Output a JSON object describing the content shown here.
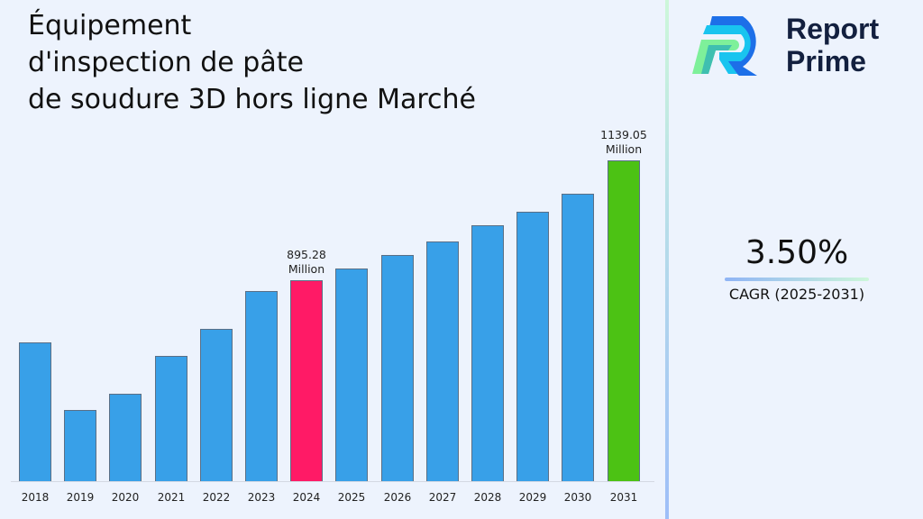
{
  "title": {
    "lines": [
      "Équipement",
      "d'inspection de pâte",
      "de soudure 3D hors ligne Marché"
    ]
  },
  "brand": {
    "line1": "Report",
    "line2": "Prime",
    "colors": {
      "dark_blue": "#1d6fe8",
      "cyan": "#19c4ef",
      "green": "#7ef09a",
      "teal": "#3fbfb0",
      "text": "#13203f"
    }
  },
  "cagr": {
    "value": "3.50%",
    "label": "CAGR (2025-2031)"
  },
  "colors": {
    "bar_default": "#38a0e8",
    "bar_highlight_2024": "#ff1a66",
    "bar_highlight_2031": "#4cc214",
    "background": "#edf3fd"
  },
  "chart_data": {
    "type": "bar",
    "title": "Équipement d'inspection de pâte de soudure 3D hors ligne Marché",
    "xlabel": "",
    "ylabel": "",
    "categories": [
      "2018",
      "2019",
      "2020",
      "2021",
      "2022",
      "2023",
      "2024",
      "2025",
      "2026",
      "2027",
      "2028",
      "2029",
      "2030",
      "2031"
    ],
    "values": [
      769,
      631,
      664,
      741,
      796,
      873,
      895.28,
      919,
      947,
      974,
      1007,
      1035,
      1071,
      1139.05
    ],
    "unit": "Million",
    "annotations": [
      {
        "category": "2024",
        "text": "895.28",
        "sub": "Million"
      },
      {
        "category": "2031",
        "text": "1139.05",
        "sub": "Million"
      }
    ],
    "highlight": {
      "2024": "#ff1a66",
      "2031": "#4cc214"
    },
    "grid": false,
    "y_axis_visible": false,
    "ylim": [
      486.5,
      1200
    ]
  }
}
